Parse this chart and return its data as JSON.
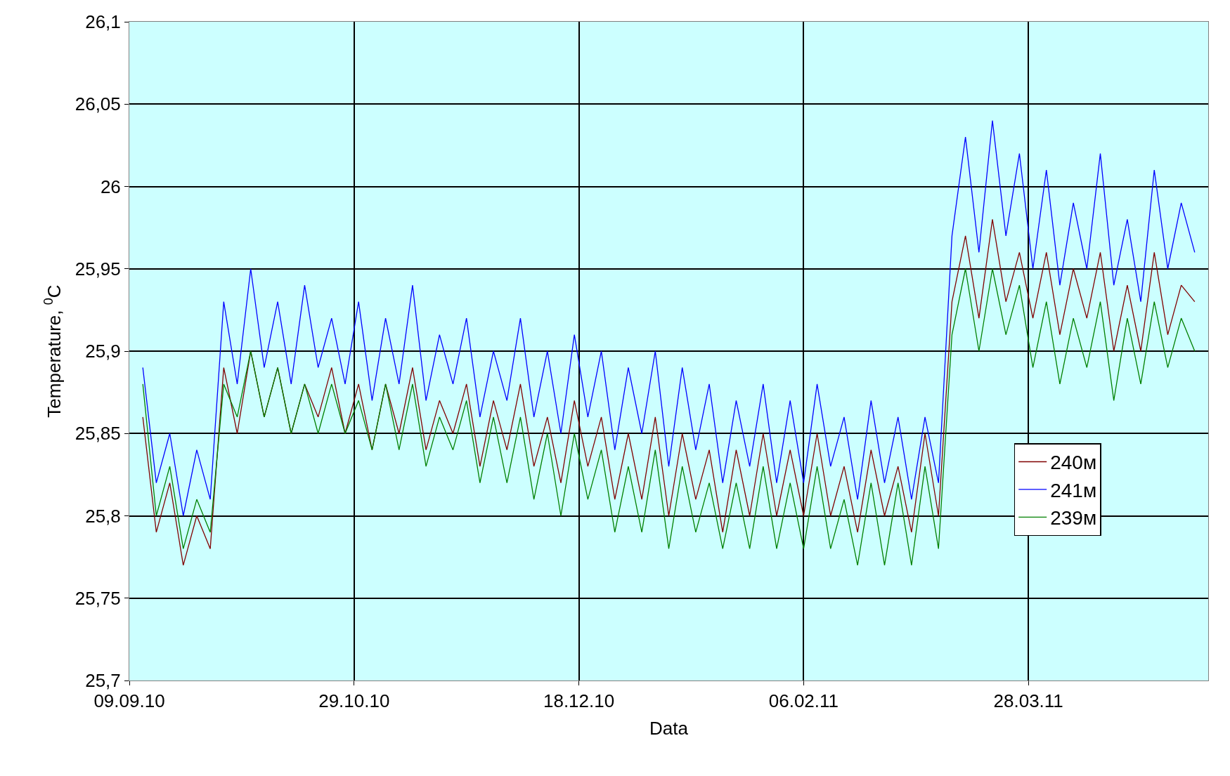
{
  "chart_data": {
    "type": "line",
    "xlabel": "Data",
    "ylabel": "Temperature, $^{0}$C",
    "x": [
      "2010-09-12",
      "2010-09-15",
      "2010-09-18",
      "2010-09-21",
      "2010-09-24",
      "2010-09-27",
      "2010-09-30",
      "2010-10-03",
      "2010-10-06",
      "2010-10-09",
      "2010-10-12",
      "2010-10-15",
      "2010-10-18",
      "2010-10-21",
      "2010-10-24",
      "2010-10-27",
      "2010-10-30",
      "2010-11-02",
      "2010-11-05",
      "2010-11-08",
      "2010-11-11",
      "2010-11-14",
      "2010-11-17",
      "2010-11-20",
      "2010-11-23",
      "2010-11-26",
      "2010-11-29",
      "2010-12-02",
      "2010-12-05",
      "2010-12-08",
      "2010-12-11",
      "2010-12-14",
      "2010-12-17",
      "2010-12-20",
      "2010-12-23",
      "2010-12-26",
      "2010-12-29",
      "2011-01-01",
      "2011-01-04",
      "2011-01-07",
      "2011-01-10",
      "2011-01-13",
      "2011-01-16",
      "2011-01-19",
      "2011-01-22",
      "2011-01-25",
      "2011-01-28",
      "2011-01-31",
      "2011-02-03",
      "2011-02-06",
      "2011-02-09",
      "2011-02-12",
      "2011-02-15",
      "2011-02-18",
      "2011-02-21",
      "2011-02-24",
      "2011-02-27",
      "2011-03-02",
      "2011-03-05",
      "2011-03-08",
      "2011-03-11",
      "2011-03-14",
      "2011-03-17",
      "2011-03-20",
      "2011-03-23",
      "2011-03-26",
      "2011-03-29",
      "2011-04-01",
      "2011-04-04",
      "2011-04-07",
      "2011-04-10",
      "2011-04-13",
      "2011-04-16",
      "2011-04-19",
      "2011-04-22",
      "2011-04-25",
      "2011-04-28",
      "2011-05-01",
      "2011-05-04"
    ],
    "series": [
      {
        "name": "240м",
        "color": "#800000",
        "values": [
          25.86,
          25.79,
          25.82,
          25.77,
          25.8,
          25.78,
          25.89,
          25.85,
          25.9,
          25.86,
          25.89,
          25.85,
          25.88,
          25.86,
          25.89,
          25.85,
          25.88,
          25.84,
          25.88,
          25.85,
          25.89,
          25.84,
          25.87,
          25.85,
          25.88,
          25.83,
          25.87,
          25.84,
          25.88,
          25.83,
          25.86,
          25.82,
          25.87,
          25.83,
          25.86,
          25.81,
          25.85,
          25.81,
          25.86,
          25.8,
          25.85,
          25.81,
          25.84,
          25.79,
          25.84,
          25.8,
          25.85,
          25.8,
          25.84,
          25.8,
          25.85,
          25.8,
          25.83,
          25.79,
          25.84,
          25.8,
          25.83,
          25.79,
          25.85,
          25.8,
          25.93,
          25.97,
          25.92,
          25.98,
          25.93,
          25.96,
          25.92,
          25.96,
          25.91,
          25.95,
          25.92,
          25.96,
          25.9,
          25.94,
          25.9,
          25.96,
          25.91,
          25.94,
          25.93
        ]
      },
      {
        "name": "241м",
        "color": "#0000ff",
        "values": [
          25.89,
          25.82,
          25.85,
          25.8,
          25.84,
          25.81,
          25.93,
          25.88,
          25.95,
          25.89,
          25.93,
          25.88,
          25.94,
          25.89,
          25.92,
          25.88,
          25.93,
          25.87,
          25.92,
          25.88,
          25.94,
          25.87,
          25.91,
          25.88,
          25.92,
          25.86,
          25.9,
          25.87,
          25.92,
          25.86,
          25.9,
          25.85,
          25.91,
          25.86,
          25.9,
          25.84,
          25.89,
          25.85,
          25.9,
          25.83,
          25.89,
          25.84,
          25.88,
          25.82,
          25.87,
          25.83,
          25.88,
          25.82,
          25.87,
          25.82,
          25.88,
          25.83,
          25.86,
          25.81,
          25.87,
          25.82,
          25.86,
          25.81,
          25.86,
          25.82,
          25.97,
          26.03,
          25.96,
          26.04,
          25.97,
          26.02,
          25.95,
          26.01,
          25.94,
          25.99,
          25.95,
          26.02,
          25.94,
          25.98,
          25.93,
          26.01,
          25.95,
          25.99,
          25.96
        ]
      },
      {
        "name": "239м",
        "color": "#008000",
        "values": [
          25.88,
          25.8,
          25.83,
          25.78,
          25.81,
          25.79,
          25.88,
          25.86,
          25.9,
          25.86,
          25.89,
          25.85,
          25.88,
          25.85,
          25.88,
          25.85,
          25.87,
          25.84,
          25.88,
          25.84,
          25.88,
          25.83,
          25.86,
          25.84,
          25.87,
          25.82,
          25.86,
          25.82,
          25.86,
          25.81,
          25.85,
          25.8,
          25.85,
          25.81,
          25.84,
          25.79,
          25.83,
          25.79,
          25.84,
          25.78,
          25.83,
          25.79,
          25.82,
          25.78,
          25.82,
          25.78,
          25.83,
          25.78,
          25.82,
          25.78,
          25.83,
          25.78,
          25.81,
          25.77,
          25.82,
          25.77,
          25.82,
          25.77,
          25.83,
          25.78,
          25.91,
          25.95,
          25.9,
          25.95,
          25.91,
          25.94,
          25.89,
          25.93,
          25.88,
          25.92,
          25.89,
          25.93,
          25.87,
          25.92,
          25.88,
          25.93,
          25.89,
          25.92,
          25.9
        ]
      }
    ],
    "xlim": [
      "2010-09-09",
      "2011-05-07"
    ],
    "xticks": [
      {
        "value": "2010-09-09",
        "label": "09.09.10"
      },
      {
        "value": "2010-10-29",
        "label": "29.10.10"
      },
      {
        "value": "2010-12-18",
        "label": "18.12.10"
      },
      {
        "value": "2011-02-06",
        "label": "06.02.11"
      },
      {
        "value": "2011-03-28",
        "label": "28.03.11"
      }
    ],
    "ylim": [
      25.7,
      26.1
    ],
    "yticks": [
      {
        "value": 25.7,
        "label": "25,7"
      },
      {
        "value": 25.75,
        "label": "25,75"
      },
      {
        "value": 25.8,
        "label": "25,8"
      },
      {
        "value": 25.85,
        "label": "25,85"
      },
      {
        "value": 25.9,
        "label": "25,9"
      },
      {
        "value": 25.95,
        "label": "25,95"
      },
      {
        "value": 26,
        "label": "26"
      },
      {
        "value": 26.05,
        "label": "26,05"
      },
      {
        "value": 26.1,
        "label": "26,1"
      }
    ],
    "grid": true,
    "legend": "right",
    "marker": "none",
    "line_style": "solid"
  }
}
